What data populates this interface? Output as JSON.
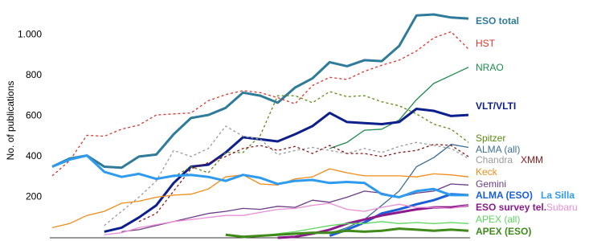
{
  "chart_data": {
    "type": "line",
    "y_label": "No. of publications",
    "categories": [
      null,
      null,
      null,
      null,
      null,
      null,
      null,
      null,
      null,
      null,
      null,
      null,
      null,
      null,
      null,
      null,
      null,
      null,
      null,
      null,
      null,
      null,
      null,
      null,
      null
    ],
    "ylim": [
      0,
      1100
    ],
    "yticks": [
      200,
      400,
      600,
      800,
      {
        "value": 1000,
        "label": "1.000"
      }
    ],
    "series": [
      {
        "name": "ESO total",
        "color": "#2f7b9a",
        "values": [
          350,
          390,
          405,
          350,
          345,
          400,
          410,
          510,
          590,
          605,
          640,
          715,
          700,
          665,
          740,
          785,
          865,
          845,
          875,
          870,
          945,
          1095,
          1100,
          1085,
          1080
        ]
      },
      {
        "name": "HST",
        "color": "#d9362b",
        "values": [
          305,
          380,
          505,
          500,
          535,
          555,
          605,
          610,
          615,
          675,
          705,
          725,
          715,
          690,
          660,
          750,
          790,
          780,
          820,
          850,
          875,
          920,
          985,
          1015,
          930
        ]
      },
      {
        "name": "NRAO",
        "color": "#1f8a4c",
        "values": [
          null,
          null,
          null,
          null,
          null,
          null,
          null,
          null,
          null,
          null,
          null,
          null,
          null,
          null,
          null,
          null,
          440,
          470,
          530,
          535,
          580,
          680,
          760,
          800,
          840
        ]
      },
      {
        "name": "VLT/VLTI",
        "color": "#0d1f8c",
        "values": [
          null,
          null,
          null,
          30,
          50,
          100,
          160,
          270,
          350,
          360,
          420,
          495,
          485,
          475,
          510,
          550,
          615,
          570,
          565,
          560,
          570,
          635,
          625,
          600,
          605
        ]
      },
      {
        "name": "Spitzer",
        "color": "#5e8a14",
        "values": [
          null,
          null,
          null,
          null,
          null,
          null,
          null,
          300,
          350,
          320,
          420,
          420,
          505,
          700,
          700,
          665,
          720,
          695,
          700,
          670,
          650,
          610,
          560,
          535,
          470
        ]
      },
      {
        "name": "ALMA (all)",
        "color": "#3f6f96",
        "values": [
          null,
          null,
          null,
          null,
          null,
          null,
          null,
          null,
          null,
          null,
          null,
          null,
          null,
          null,
          null,
          null,
          20,
          50,
          90,
          160,
          230,
          350,
          395,
          460,
          445
        ]
      },
      {
        "name": "Chandra",
        "color": "#9a9a9a",
        "values": [
          null,
          null,
          null,
          60,
          130,
          200,
          280,
          430,
          400,
          440,
          550,
          500,
          485,
          410,
          430,
          445,
          430,
          415,
          440,
          420,
          450,
          470,
          455,
          440,
          390
        ]
      },
      {
        "name": "XMM",
        "color": "#8b1a1a",
        "values": [
          null,
          null,
          null,
          null,
          null,
          80,
          120,
          230,
          340,
          370,
          400,
          440,
          455,
          430,
          450,
          415,
          455,
          415,
          415,
          400,
          420,
          430,
          460,
          455,
          400
        ]
      },
      {
        "name": "Keck",
        "color": "#f08c1a",
        "values": [
          50,
          70,
          110,
          130,
          170,
          180,
          200,
          210,
          215,
          240,
          300,
          310,
          265,
          260,
          290,
          300,
          340,
          320,
          305,
          305,
          305,
          300,
          315,
          310,
          300
        ]
      },
      {
        "name": "Gemini",
        "color": "#6b3d86",
        "values": [
          null,
          null,
          null,
          null,
          30,
          40,
          60,
          80,
          100,
          120,
          130,
          145,
          140,
          155,
          150,
          185,
          175,
          200,
          230,
          220,
          200,
          220,
          230,
          265,
          260
        ]
      },
      {
        "name": "ALMA (ESO)",
        "color": "#1a5fd6",
        "values": [
          null,
          null,
          null,
          null,
          null,
          null,
          null,
          null,
          null,
          null,
          null,
          null,
          null,
          null,
          null,
          null,
          10,
          40,
          75,
          120,
          140,
          165,
          185,
          215,
          210
        ]
      },
      {
        "name": "La Silla",
        "color": "#2f9bef",
        "values": [
          350,
          385,
          405,
          325,
          300,
          315,
          290,
          305,
          310,
          300,
          280,
          310,
          295,
          265,
          280,
          285,
          270,
          275,
          270,
          215,
          200,
          230,
          240,
          210,
          210
        ]
      },
      {
        "name": "ESO survey tel.",
        "color": "#8b1a8b",
        "values": [
          null,
          null,
          null,
          null,
          null,
          null,
          null,
          null,
          null,
          null,
          null,
          null,
          null,
          0,
          5,
          20,
          40,
          70,
          90,
          110,
          125,
          140,
          150,
          150,
          160
        ]
      },
      {
        "name": "Subaru",
        "color": "#e88fd6",
        "values": [
          null,
          null,
          null,
          15,
          25,
          50,
          65,
          80,
          90,
          100,
          110,
          110,
          125,
          140,
          145,
          160,
          170,
          140,
          130,
          150,
          165,
          150,
          150,
          145,
          160
        ]
      },
      {
        "name": "APEX (all)",
        "color": "#5fd65f",
        "values": [
          null,
          null,
          null,
          null,
          null,
          null,
          null,
          null,
          null,
          null,
          null,
          0,
          10,
          20,
          30,
          45,
          60,
          70,
          70,
          80,
          70,
          75,
          70,
          75,
          70
        ]
      },
      {
        "name": "APEX (ESO)",
        "color": "#3f8a1a",
        "values": [
          null,
          null,
          null,
          null,
          null,
          null,
          null,
          null,
          null,
          null,
          15,
          5,
          10,
          15,
          20,
          25,
          25,
          35,
          30,
          35,
          45,
          40,
          35,
          40,
          35
        ]
      }
    ]
  }
}
